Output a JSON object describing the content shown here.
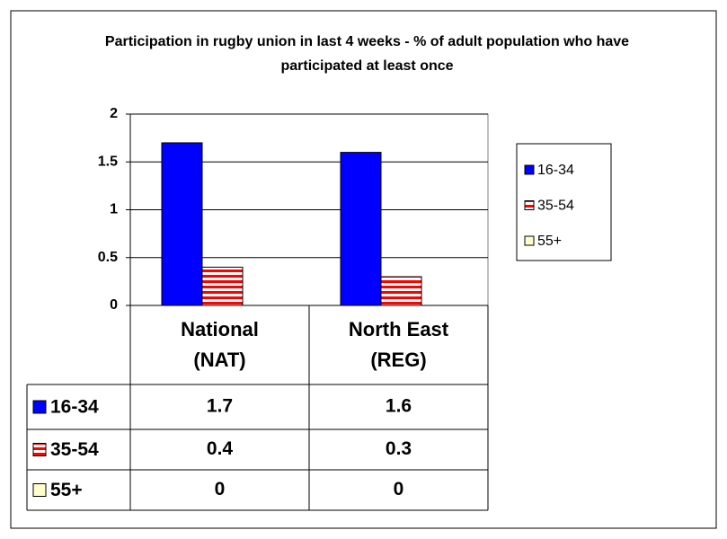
{
  "chart_data": {
    "type": "bar",
    "title": "Participation in rugby union in last 4 weeks - % of adult population who have participated at least once",
    "categories": [
      "National (NAT)",
      "North East (REG)"
    ],
    "series": [
      {
        "name": "16-34",
        "color": "#0000ff",
        "values": [
          1.7,
          1.6
        ]
      },
      {
        "name": "35-54",
        "color": "#ff0000",
        "pattern": "horizontal",
        "values": [
          0.4,
          0.3
        ]
      },
      {
        "name": "55+",
        "color": "#ffffcc",
        "values": [
          0,
          0
        ]
      }
    ],
    "ylim": [
      0,
      2
    ],
    "yticks": [
      0,
      0.5,
      1,
      1.5,
      2
    ],
    "grid": true,
    "legend": "right",
    "data_table": true
  }
}
